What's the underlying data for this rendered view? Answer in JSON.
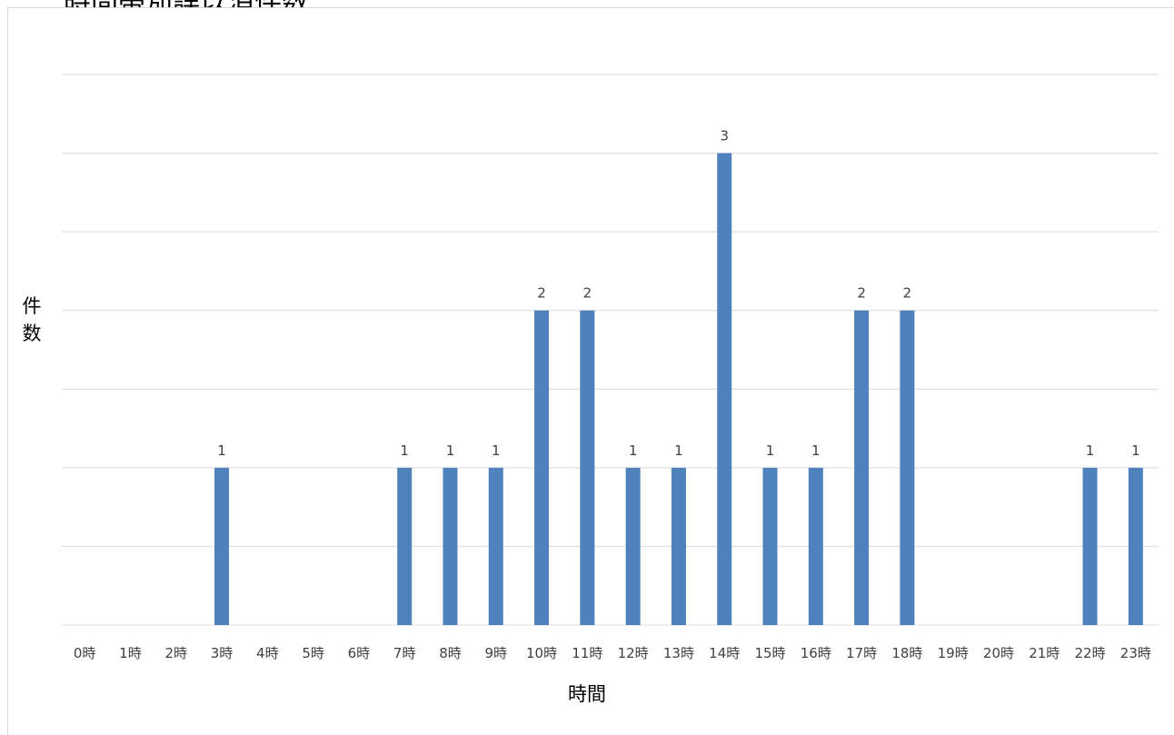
{
  "chart_data": {
    "type": "bar",
    "title": "時間帯別誤以消件数",
    "xlabel": "時間",
    "ylabel": "件数",
    "categories": [
      "0時",
      "1時",
      "2時",
      "3時",
      "4時",
      "5時",
      "6時",
      "7時",
      "8時",
      "9時",
      "10時",
      "11時",
      "12時",
      "13時",
      "14時",
      "15時",
      "16時",
      "17時",
      "18時",
      "19時",
      "20時",
      "21時",
      "22時",
      "23時"
    ],
    "values": [
      0,
      0,
      0,
      1,
      0,
      0,
      0,
      1,
      1,
      1,
      2,
      2,
      1,
      1,
      3,
      1,
      1,
      2,
      2,
      0,
      0,
      0,
      1,
      1
    ],
    "ylim": [
      0,
      3.5
    ],
    "grid": true,
    "legend": "none",
    "data_labels": true,
    "bar_color": "#4f81bd",
    "grid_color": "#d9d9d9",
    "label_color": "#404040"
  }
}
